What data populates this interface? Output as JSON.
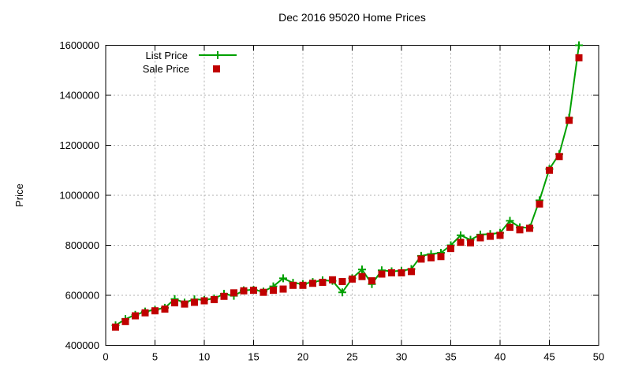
{
  "chart_data": {
    "type": "line",
    "title": "Dec 2016 95020 Home Prices",
    "xlabel": "",
    "ylabel": "Price",
    "xlim": [
      0,
      50
    ],
    "ylim": [
      400000,
      1600000
    ],
    "xticks": [
      0,
      5,
      10,
      15,
      20,
      25,
      30,
      35,
      40,
      45,
      50
    ],
    "yticks": [
      400000,
      600000,
      800000,
      1000000,
      1200000,
      1400000,
      1600000
    ],
    "grid": true,
    "legend_position": "top-left-inside",
    "background": "#ffffff",
    "grid_color": "#b0b0b0",
    "border_color": "#000000",
    "x": [
      1,
      2,
      3,
      4,
      5,
      6,
      7,
      8,
      9,
      10,
      11,
      12,
      13,
      14,
      15,
      16,
      17,
      18,
      19,
      20,
      21,
      22,
      23,
      24,
      25,
      26,
      27,
      28,
      29,
      30,
      31,
      32,
      33,
      34,
      35,
      36,
      37,
      38,
      39,
      40,
      41,
      42,
      43,
      44,
      45,
      46,
      47,
      48
    ],
    "series": [
      {
        "name": "List Price",
        "style": "line-with-plus-markers",
        "color": "#00A000",
        "values": [
          480000,
          505000,
          522000,
          535000,
          542000,
          550000,
          585000,
          571000,
          584000,
          582000,
          587000,
          606000,
          598000,
          620000,
          622000,
          615000,
          636000,
          668000,
          650000,
          645000,
          653000,
          660000,
          658000,
          612000,
          668000,
          703000,
          645000,
          700000,
          696000,
          698000,
          705000,
          758000,
          765000,
          770000,
          800000,
          840000,
          822000,
          843000,
          845000,
          850000,
          898000,
          872000,
          870000,
          980000,
          1105000,
          1165000,
          1310000,
          1600000
        ]
      },
      {
        "name": "Sale Price",
        "style": "square-markers",
        "color": "#C00000",
        "values": [
          473000,
          495000,
          518000,
          530000,
          538000,
          545000,
          570000,
          565000,
          572000,
          578000,
          583000,
          596000,
          610000,
          618000,
          620000,
          612000,
          620000,
          625000,
          640000,
          640000,
          648000,
          652000,
          662000,
          655000,
          665000,
          675000,
          658000,
          685000,
          690000,
          690000,
          695000,
          745000,
          750000,
          755000,
          787000,
          812000,
          810000,
          830000,
          836000,
          840000,
          872000,
          862000,
          868000,
          965000,
          1100000,
          1155000,
          1300000,
          1550000
        ]
      }
    ]
  }
}
